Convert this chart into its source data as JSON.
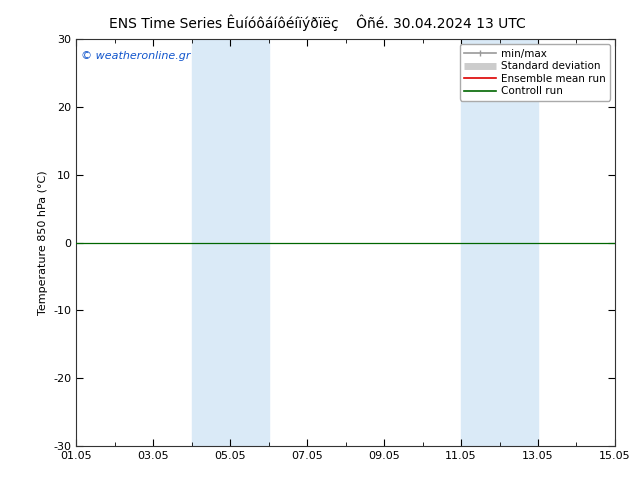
{
  "title_left": "ENS Time Series Êuíóôáíôéíïýðïëç",
  "title_right": "Ôñé. 30.04.2024 13 UTC",
  "ylabel": "Temperature 850 hPa (°C)",
  "ylim": [
    -30,
    30
  ],
  "yticks": [
    -30,
    -20,
    -10,
    0,
    10,
    20,
    30
  ],
  "xtick_labels": [
    "01.05",
    "03.05",
    "05.05",
    "07.05",
    "09.05",
    "11.05",
    "13.05",
    "15.05"
  ],
  "xtick_positions": [
    0,
    2,
    4,
    6,
    8,
    10,
    12,
    14
  ],
  "xlim": [
    0,
    14
  ],
  "shaded_bands": [
    {
      "x_start": 3.0,
      "x_end": 4.0,
      "color": "#daeaf7"
    },
    {
      "x_start": 4.0,
      "x_end": 5.0,
      "color": "#daeaf7"
    },
    {
      "x_start": 10.0,
      "x_end": 11.0,
      "color": "#daeaf7"
    },
    {
      "x_start": 11.0,
      "x_end": 12.0,
      "color": "#daeaf7"
    }
  ],
  "hline_y": 0,
  "hline_color": "#006600",
  "watermark": "© weatheronline.gr",
  "watermark_color": "#1155cc",
  "legend_items": [
    {
      "label": "min/max",
      "color": "#999999",
      "lw": 1.2
    },
    {
      "label": "Standard deviation",
      "color": "#cccccc",
      "lw": 5
    },
    {
      "label": "Ensemble mean run",
      "color": "#dd0000",
      "lw": 1.2
    },
    {
      "label": "Controll run",
      "color": "#006600",
      "lw": 1.2
    }
  ],
  "bg_color": "#ffffff",
  "plot_bg_color": "#ffffff",
  "title_fontsize": 10,
  "axis_fontsize": 8,
  "tick_fontsize": 8,
  "legend_fontsize": 7.5
}
